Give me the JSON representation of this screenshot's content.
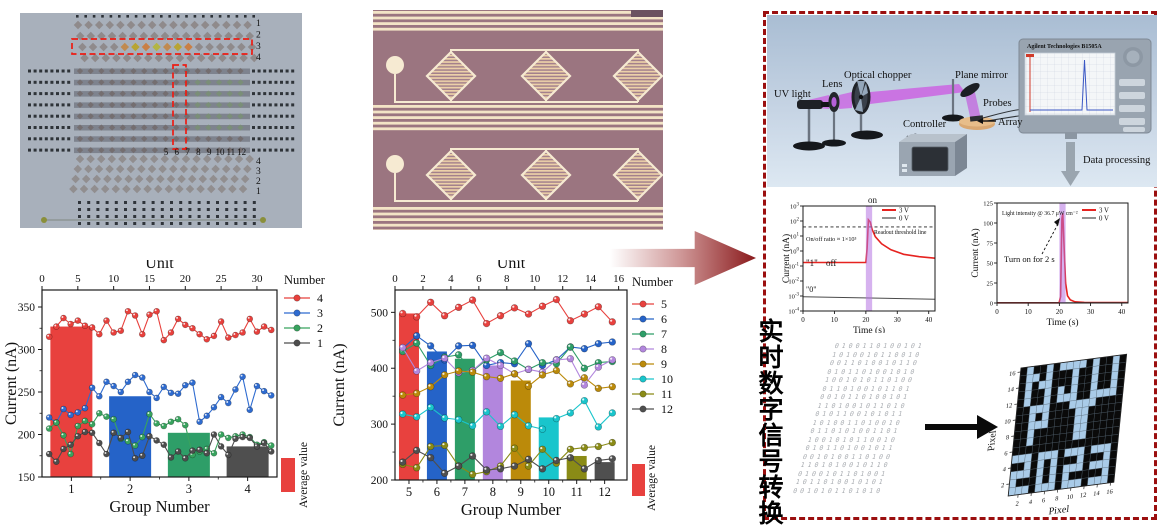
{
  "panel": {
    "border_color": "#9b0f0f"
  },
  "photos": {
    "array": {
      "right_top_labels": [
        "1",
        "2",
        "3",
        "4"
      ],
      "column_labels": [
        "5",
        "6",
        "7",
        "8",
        "9",
        "10",
        "11",
        "12"
      ],
      "right_bottom_labels": [
        "4",
        "3",
        "2",
        "1"
      ],
      "annotation_color": "#ed1c13"
    }
  },
  "schematic": {
    "uv_light": "UV light",
    "lens": "Lens",
    "optical_chopper": "Optical chopper",
    "controller": "Controller",
    "plane_mirror": "Plane mirror",
    "probes": "Probes",
    "array": "Array",
    "instrument": "Agilent Technologies B1505A",
    "data_processing": "Data processing"
  },
  "chinese_caption": "实时数字信号转换",
  "binary_rows": [
    "0100110100101",
    "1010010110010",
    "0011010010110",
    "0101101001010",
    "1001010110100",
    "0110100101101",
    "0010110100101",
    "1101001011010",
    "0101100101011",
    "1010011010010",
    "0110101001101",
    "1001010110010",
    "0101101001011",
    "0010100110100",
    "1101010010110",
    "0100101101001",
    "1011010010101",
    "0010101101010"
  ],
  "pixel_map": {
    "xlabel": "Pixel",
    "ylabel": "Pixel",
    "ticks": [
      2,
      4,
      6,
      8,
      10,
      12,
      14,
      16
    ],
    "on_color": "#a9cbe8",
    "off_color": "#0a0a0a",
    "rows": [
      "0100101111010010",
      "0110100010010010",
      "0101100010010010",
      "0100101010010010",
      "0100101110011110",
      "0011100011110000",
      "0010100001100000",
      "0011100001100000",
      "0010000001100000",
      "0010000001100000",
      "0000000000000000",
      "1110111011101110",
      "0010101000100010",
      "1110101011101110",
      "1000101010000010",
      "1110111011101110"
    ]
  },
  "chart_data": [
    {
      "type": "bar",
      "name": "group-chart-1",
      "top_axis_label": "Unit",
      "xlabel": "Group Number",
      "ylabel": "Current (nA)",
      "legend_title": "Number",
      "avg_label": "Average value",
      "x_max": 32.8,
      "top_ticks": [
        0,
        5,
        10,
        15,
        20,
        25,
        30
      ],
      "ylim": [
        150,
        370
      ],
      "yticks": [
        150,
        200,
        250,
        300,
        350
      ],
      "yminor": [
        175,
        225,
        275,
        325
      ],
      "group_labels": [
        "1",
        "2",
        "3",
        "4"
      ],
      "bottom_minor": [
        8.2,
        16.4,
        24.6
      ],
      "bars": {
        "units": [
          4.1,
          12.3,
          20.5,
          28.7
        ],
        "values": [
          327,
          245,
          202,
          186
        ],
        "colors": [
          "#e8413e",
          "#2563c8",
          "#2e9e68",
          "#4f4f4f"
        ]
      },
      "series": [
        {
          "name": "4",
          "color": "#e8403c",
          "values": [
            315,
            327,
            337,
            330,
            334,
            328,
            326,
            318,
            334,
            320,
            322,
            345,
            340,
            318,
            341,
            345,
            311,
            320,
            336,
            329,
            325,
            318,
            312,
            316,
            333,
            314,
            317,
            320,
            336,
            321,
            327,
            323
          ]
        },
        {
          "name": "3",
          "color": "#2e6bd0",
          "values": [
            220,
            214,
            230,
            223,
            226,
            231,
            255,
            245,
            262,
            257,
            250,
            262,
            270,
            267,
            250,
            243,
            256,
            249,
            248,
            258,
            261,
            215,
            222,
            232,
            244,
            237,
            253,
            268,
            229,
            257,
            251,
            246
          ]
        },
        {
          "name": "2",
          "color": "#38a35e",
          "values": [
            207,
            214,
            199,
            177,
            210,
            216,
            212,
            225,
            221,
            218,
            195,
            192,
            187,
            197,
            224,
            213,
            210,
            215,
            218,
            211,
            176,
            180,
            183,
            178,
            200,
            196,
            198,
            200,
            197,
            188,
            191,
            187
          ]
        },
        {
          "name": "1",
          "color": "#4d4d4d",
          "values": [
            177,
            168,
            183,
            188,
            198,
            203,
            202,
            190,
            177,
            202,
            196,
            203,
            172,
            175,
            198,
            193,
            188,
            173,
            180,
            172,
            181,
            182,
            178,
            200,
            186,
            176,
            195,
            197,
            196,
            186,
            190,
            180
          ]
        }
      ]
    },
    {
      "type": "bar",
      "name": "group-chart-2",
      "top_axis_label": "Unit",
      "xlabel": "Group Number",
      "ylabel": "Current (nA)",
      "legend_title": "Number",
      "avg_label": "Average value",
      "x_max": 16.6,
      "top_ticks": [
        0,
        2,
        4,
        6,
        8,
        10,
        12,
        14,
        16
      ],
      "ylim": [
        200,
        540
      ],
      "yticks": [
        200,
        300,
        400,
        500
      ],
      "yminor": [
        250,
        350,
        450
      ],
      "group_labels": [
        "5",
        "6",
        "7",
        "8",
        "9",
        "10",
        "11",
        "12"
      ],
      "bottom_minor": [
        2,
        4,
        6,
        8,
        10,
        12,
        14
      ],
      "bars": {
        "units": [
          1,
          3,
          5,
          7,
          9,
          11,
          13,
          15
        ],
        "values": [
          498,
          430,
          417,
          405,
          378,
          312,
          243,
          232
        ],
        "colors": [
          "#e8413e",
          "#2563c8",
          "#2e9e68",
          "#b286dd",
          "#bb8a0a",
          "#19c5cc",
          "#8a8b16",
          "#4f4f4f"
        ]
      },
      "series": [
        {
          "name": "5",
          "color": "#e8413e",
          "values": [
            498,
            492,
            518,
            494,
            509,
            522,
            480,
            494,
            508,
            497,
            511,
            523,
            485,
            497,
            510,
            483
          ]
        },
        {
          "name": "6",
          "color": "#2563c8",
          "values": [
            435,
            458,
            440,
            415,
            440,
            441,
            405,
            410,
            408,
            444,
            405,
            415,
            438,
            435,
            444,
            447
          ]
        },
        {
          "name": "7",
          "color": "#2e9e68",
          "values": [
            430,
            445,
            405,
            420,
            424,
            395,
            415,
            428,
            413,
            398,
            410,
            408,
            438,
            400,
            410,
            412
          ]
        },
        {
          "name": "8",
          "color": "#b286dd",
          "values": [
            437,
            395,
            410,
            418,
            392,
            396,
            418,
            405,
            390,
            398,
            393,
            415,
            417,
            370,
            402,
            415
          ]
        },
        {
          "name": "9",
          "color": "#bb8a0a",
          "values": [
            352,
            355,
            367,
            388,
            395,
            393,
            385,
            382,
            390,
            368,
            388,
            396,
            372,
            383,
            364,
            367
          ]
        },
        {
          "name": "10",
          "color": "#19c5cc",
          "values": [
            318,
            313,
            330,
            311,
            308,
            297,
            322,
            296,
            317,
            297,
            291,
            310,
            320,
            342,
            295,
            320
          ]
        },
        {
          "name": "11",
          "color": "#8a8b16",
          "values": [
            228,
            222,
            260,
            262,
            225,
            210,
            215,
            225,
            257,
            225,
            255,
            230,
            255,
            258,
            260,
            267
          ]
        },
        {
          "name": "12",
          "color": "#4f4f4f",
          "values": [
            232,
            253,
            240,
            212,
            225,
            243,
            218,
            220,
            225,
            237,
            220,
            235,
            240,
            220,
            235,
            238
          ]
        }
      ]
    },
    {
      "type": "line",
      "name": "time-plot-log",
      "yscale": "log",
      "xlabel": "Time (s)",
      "ylabel": "Current (nA)",
      "xlim": [
        0,
        42
      ],
      "xticks": [
        0,
        10,
        20,
        30,
        40
      ],
      "y_exponents": [
        3,
        2,
        1,
        0,
        -1,
        -2,
        -3,
        -4
      ],
      "legend": [
        {
          "label": "3 V",
          "color": "#e62320"
        },
        {
          "label": "0 V",
          "color": "#4a4a4a"
        }
      ],
      "band": {
        "x": [
          20,
          22
        ],
        "color": "#b473e2"
      },
      "threshold": {
        "value": 40,
        "label": "Readout threshold line"
      },
      "annotations": {
        "on": "on",
        "ratio": "On/off ratio ≈ 1×10³",
        "one": "\"1\"",
        "off": "off",
        "zero": "\"0\""
      },
      "series": [
        {
          "name": "3 V",
          "color": "#e62320",
          "points": [
            [
              0,
              0.17
            ],
            [
              20,
              0.17
            ],
            [
              20.4,
              1.5
            ],
            [
              20.8,
              120
            ],
            [
              21.4,
              85
            ],
            [
              22,
              28
            ],
            [
              23,
              9
            ],
            [
              25,
              3
            ],
            [
              28,
              1.2
            ],
            [
              32,
              0.6
            ],
            [
              37,
              0.42
            ],
            [
              42,
              0.33
            ]
          ]
        },
        {
          "name": "0 V",
          "color": "#4a4a4a",
          "points": [
            [
              0,
              0.0009
            ],
            [
              42,
              0.0006
            ]
          ]
        }
      ]
    },
    {
      "type": "line",
      "name": "time-plot-linear",
      "yscale": "linear",
      "xlabel": "Time (s)",
      "ylabel": "Current (nA)",
      "xlim": [
        0,
        42
      ],
      "xticks": [
        0,
        10,
        20,
        30,
        40
      ],
      "ylim": [
        0,
        125
      ],
      "yticks": [
        0,
        25,
        50,
        75,
        100,
        125
      ],
      "legend": [
        {
          "label": "3 V",
          "color": "#e62320"
        },
        {
          "label": "0 V",
          "color": "#4a4a4a"
        }
      ],
      "band": {
        "x": [
          20,
          22
        ],
        "color": "#b473e2"
      },
      "annotations": {
        "intensity": "Light intensity @ 36.7 μW cm⁻²",
        "turn_on": "Turn on for 2 s"
      },
      "series": [
        {
          "name": "3 V",
          "color": "#e62320",
          "points": [
            [
              0,
              0.3
            ],
            [
              19.9,
              0.3
            ],
            [
              20.4,
              8
            ],
            [
              20.8,
              105
            ],
            [
              21.1,
              112
            ],
            [
              21.5,
              70
            ],
            [
              22,
              25
            ],
            [
              22.6,
              9
            ],
            [
              23.5,
              4
            ],
            [
              25,
              1.5
            ],
            [
              28,
              0.8
            ],
            [
              42,
              0.5
            ]
          ]
        },
        {
          "name": "0 V",
          "color": "#4a4a4a",
          "points": [
            [
              0,
              0.2
            ],
            [
              42,
              0.2
            ]
          ]
        }
      ]
    }
  ]
}
